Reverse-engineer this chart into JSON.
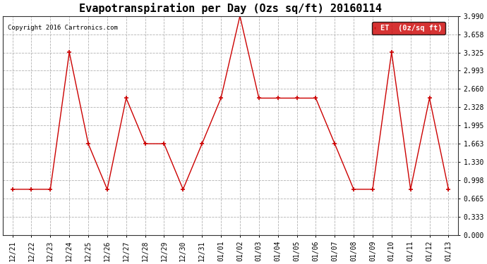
{
  "title": "Evapotranspiration per Day (Ozs sq/ft) 20160114",
  "copyright": "Copyright 2016 Cartronics.com",
  "legend_label": "ET  (0z/sq ft)",
  "x_labels": [
    "12/21",
    "12/22",
    "12/23",
    "12/24",
    "12/25",
    "12/26",
    "12/27",
    "12/28",
    "12/29",
    "12/30",
    "12/31",
    "01/01",
    "01/02",
    "01/03",
    "01/04",
    "01/05",
    "01/06",
    "01/07",
    "01/08",
    "01/09",
    "01/10",
    "01/11",
    "01/12",
    "01/13"
  ],
  "y_values": [
    0.833,
    0.833,
    0.833,
    3.33,
    1.663,
    0.833,
    2.494,
    1.663,
    1.663,
    0.833,
    1.663,
    2.494,
    3.99,
    2.494,
    2.494,
    2.494,
    2.494,
    1.663,
    0.833,
    0.833,
    3.33,
    0.833,
    2.494,
    0.833
  ],
  "y_ticks": [
    0.0,
    0.333,
    0.665,
    0.998,
    1.33,
    1.663,
    1.995,
    2.328,
    2.66,
    2.993,
    3.325,
    3.658,
    3.99
  ],
  "y_tick_labels": [
    "0.000",
    "0.333",
    "0.665",
    "0.998",
    "1.330",
    "1.663",
    "1.995",
    "2.328",
    "2.660",
    "2.993",
    "3.325",
    "3.658",
    "3.990"
  ],
  "line_color": "#cc0000",
  "marker_color": "#cc0000",
  "background_color": "#ffffff",
  "grid_color": "#aaaaaa",
  "legend_bg": "#cc0000",
  "legend_text_color": "#ffffff",
  "title_fontsize": 11,
  "tick_fontsize": 7,
  "copyright_fontsize": 6.5,
  "ylim": [
    0.0,
    3.99
  ],
  "figsize": [
    6.9,
    3.75
  ],
  "dpi": 100
}
